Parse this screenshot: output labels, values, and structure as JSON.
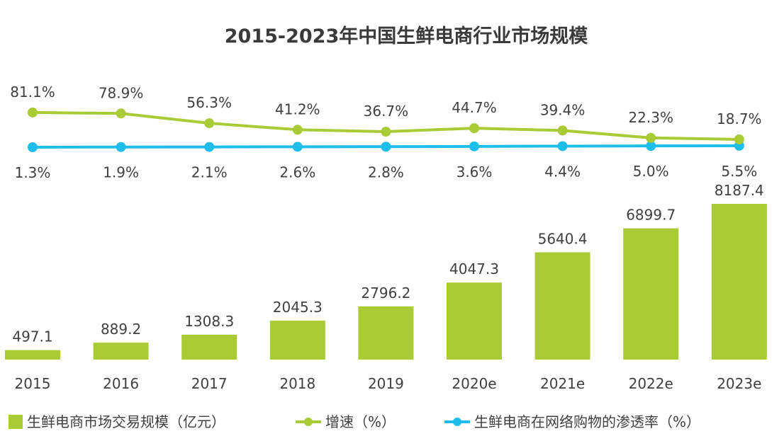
{
  "chart_data": {
    "type": "bar+line",
    "title": "2015-2023年中国生鲜电商行业市场规模",
    "categories": [
      "2015",
      "2016",
      "2017",
      "2018",
      "2019",
      "2020e",
      "2021e",
      "2022e",
      "2023e"
    ],
    "series": [
      {
        "name": "生鲜电商市场交易规模（亿元）",
        "type": "bar",
        "color": "#a8cb36",
        "values": [
          497.1,
          889.2,
          1308.3,
          2045.3,
          2796.2,
          4047.3,
          5640.4,
          6899.7,
          8187.4
        ],
        "labels": [
          "497.1",
          "889.2",
          "1308.3",
          "2045.3",
          "2796.2",
          "4047.3",
          "5640.4",
          "6899.7",
          "8187.4"
        ]
      },
      {
        "name": "增速（%）",
        "type": "line",
        "color": "#a8cb36",
        "values": [
          81.1,
          78.9,
          56.3,
          41.2,
          36.7,
          44.7,
          39.4,
          22.3,
          18.7
        ],
        "labels": [
          "81.1%",
          "78.9%",
          "56.3%",
          "41.2%",
          "36.7%",
          "44.7%",
          "39.4%",
          "22.3%",
          "18.7%"
        ]
      },
      {
        "name": "生鲜电商在网络购物的渗透率（%）",
        "type": "line",
        "color": "#1fbde9",
        "values": [
          1.3,
          1.9,
          2.1,
          2.6,
          2.8,
          3.6,
          4.4,
          5.0,
          5.5
        ],
        "labels": [
          "1.3%",
          "1.9%",
          "2.1%",
          "2.6%",
          "2.8%",
          "3.6%",
          "4.4%",
          "5.0%",
          "5.5%"
        ]
      }
    ],
    "grid": false,
    "legend": "bottom"
  }
}
